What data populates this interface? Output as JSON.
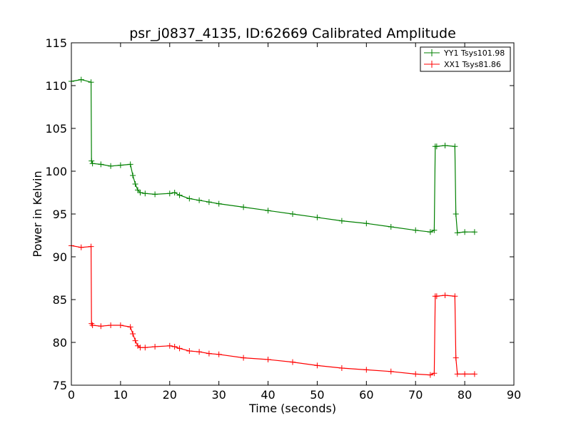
{
  "chart_data": {
    "type": "line",
    "title": "psr_j0837_4135, ID:62669 Calibrated Amplitude",
    "xlabel": "Time (seconds)",
    "ylabel": "Power in Kelvin",
    "xlim": [
      0,
      90
    ],
    "ylim": [
      75,
      115
    ],
    "xticks": [
      0,
      10,
      20,
      30,
      40,
      50,
      60,
      70,
      80,
      90
    ],
    "yticks": [
      75,
      80,
      85,
      90,
      95,
      100,
      105,
      110,
      115
    ],
    "grid": false,
    "legend_position": "top-right",
    "marker": "+",
    "series": [
      {
        "name": "YY1 Tsys101.98",
        "color": "#008000",
        "x": [
          0,
          2,
          4,
          4.1,
          4.3,
          6,
          8,
          10,
          12,
          12.5,
          13,
          13.5,
          14,
          15,
          17,
          20,
          21,
          22,
          24,
          26,
          28,
          30,
          35,
          40,
          45,
          50,
          55,
          60,
          65,
          70,
          73,
          73.8,
          74,
          74.3,
          76,
          78,
          78.2,
          78.5,
          80,
          82
        ],
        "y": [
          110.5,
          110.7,
          110.4,
          101.2,
          100.9,
          100.8,
          100.6,
          100.7,
          100.8,
          99.5,
          98.5,
          97.8,
          97.5,
          97.4,
          97.3,
          97.4,
          97.5,
          97.2,
          96.8,
          96.6,
          96.4,
          96.2,
          95.8,
          95.4,
          95.0,
          94.6,
          94.2,
          93.9,
          93.5,
          93.1,
          92.9,
          93.1,
          102.9,
          102.9,
          103.0,
          102.9,
          95.0,
          92.8,
          92.9,
          92.9
        ]
      },
      {
        "name": "XX1 Tsys81.86",
        "color": "#ff0000",
        "x": [
          0,
          2,
          4,
          4.1,
          4.3,
          6,
          8,
          10,
          12,
          12.5,
          13,
          13.5,
          14,
          15,
          17,
          20,
          21,
          22,
          24,
          26,
          28,
          30,
          35,
          40,
          45,
          50,
          55,
          60,
          65,
          70,
          73,
          73.8,
          74,
          74.3,
          76,
          78,
          78.2,
          78.5,
          80,
          82
        ],
        "y": [
          91.3,
          91.1,
          91.2,
          82.2,
          82.0,
          81.9,
          82.0,
          82.0,
          81.8,
          81.0,
          80.2,
          79.6,
          79.4,
          79.4,
          79.5,
          79.6,
          79.5,
          79.3,
          79.0,
          78.9,
          78.7,
          78.6,
          78.2,
          78.0,
          77.7,
          77.3,
          77.0,
          76.8,
          76.6,
          76.3,
          76.2,
          76.4,
          85.4,
          85.4,
          85.5,
          85.4,
          78.2,
          76.3,
          76.3,
          76.3
        ]
      }
    ]
  }
}
